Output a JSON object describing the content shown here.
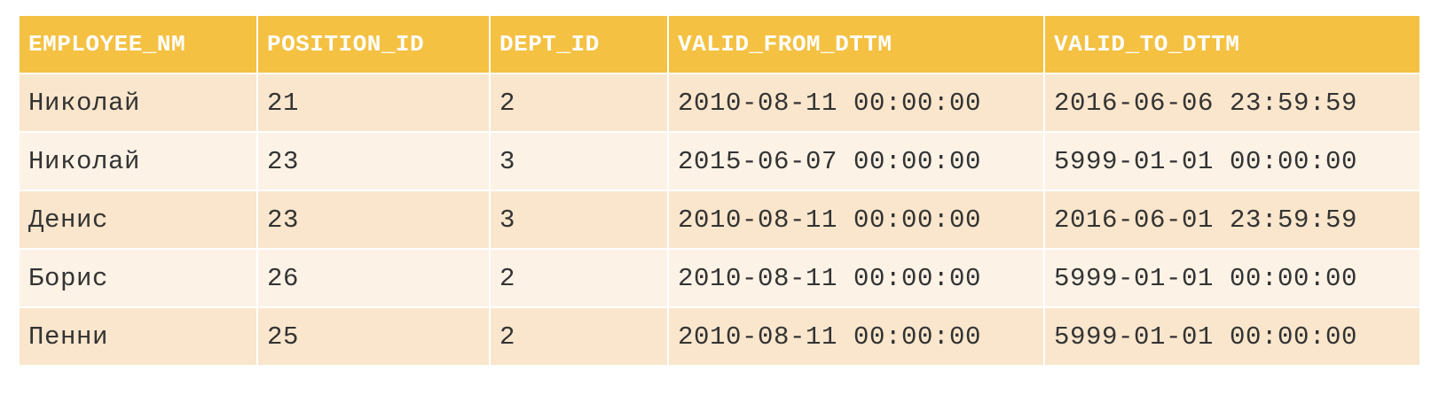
{
  "table": {
    "columns": [
      "EMPLOYEE_NM",
      "POSITION_ID",
      "DEPT_ID",
      "VALID_FROM_DTTM",
      "VALID_TO_DTTM"
    ],
    "rows": [
      [
        "Николай",
        "21",
        "2",
        "2010-08-11 00:00:00",
        "2016-06-06 23:59:59"
      ],
      [
        "Николай",
        "23",
        "3",
        "2015-06-07 00:00:00",
        "5999-01-01 00:00:00"
      ],
      [
        "Денис",
        "23",
        "3",
        "2010-08-11 00:00:00",
        "2016-06-01 23:59:59"
      ],
      [
        "Борис",
        "26",
        "2",
        "2010-08-11 00:00:00",
        "5999-01-01 00:00:00"
      ],
      [
        "Пенни",
        "25",
        "2",
        "2010-08-11 00:00:00",
        "5999-01-01 00:00:00"
      ]
    ]
  },
  "colors": {
    "header_bg": "#f4c143",
    "header_text": "#ffffff",
    "row_odd_bg": "#f9e6cc",
    "row_even_bg": "#fcf2e6",
    "cell_text": "#333333"
  }
}
